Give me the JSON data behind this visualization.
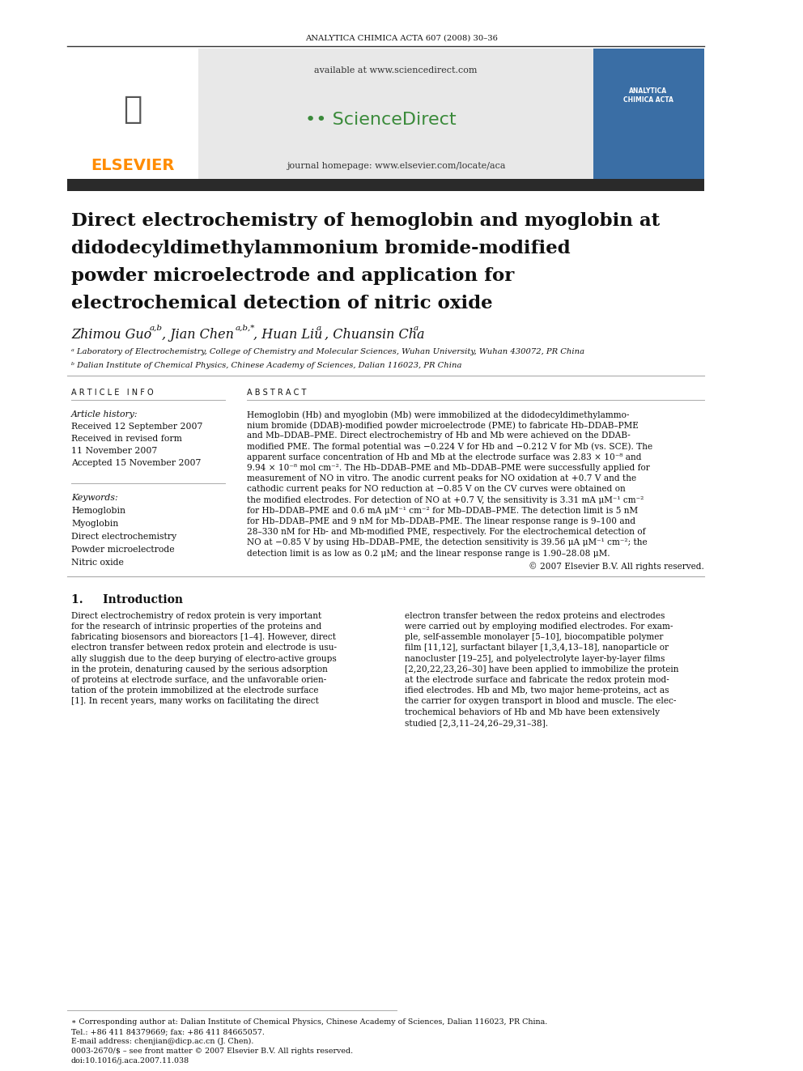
{
  "journal_header": "ANALYTICA CHIMICA ACTA 607 (2008) 30–36",
  "available_text": "available at www.sciencedirect.com",
  "journal_homepage": "journal homepage: www.elsevier.com/locate/aca",
  "title_line1": "Direct electrochemistry of hemoglobin and myoglobin at",
  "title_line2": "didodecyldimethylammonium bromide-modified",
  "title_line3": "powder microelectrode and application for",
  "title_line4": "electrochemical detection of nitric oxide",
  "author_name1": "Zhimou Guo",
  "author_sup1": "a,b",
  "author_name2": ", Jian Chen",
  "author_sup2": "a,b,*",
  "author_name3": ", Huan Liu",
  "author_sup3": "a",
  "author_name4": ", Chuansin Cha",
  "author_sup4": "a",
  "affil_a": "ᵃ Laboratory of Electrochemistry, College of Chemistry and Molecular Sciences, Wuhan University, Wuhan 430072, PR China",
  "affil_b": "ᵇ Dalian Institute of Chemical Physics, Chinese Academy of Sciences, Dalian 116023, PR China",
  "article_info_header": "A R T I C L E   I N F O",
  "article_history_label": "Article history:",
  "received1": "Received 12 September 2007",
  "received_revised": "Received in revised form",
  "received_revised2": "11 November 2007",
  "accepted": "Accepted 15 November 2007",
  "keywords_label": "Keywords:",
  "keywords": [
    "Hemoglobin",
    "Myoglobin",
    "Direct electrochemistry",
    "Powder microelectrode",
    "Nitric oxide"
  ],
  "abstract_header": "A B S T R A C T",
  "abstract_lines": [
    "Hemoglobin (Hb) and myoglobin (Mb) were immobilized at the didodecyldimethylammo-",
    "nium bromide (DDAB)-modified powder microelectrode (PME) to fabricate Hb–DDAB–PME",
    "and Mb–DDAB–PME. Direct electrochemistry of Hb and Mb were achieved on the DDAB-",
    "modified PME. The formal potential was −0.224 V for Hb and −0.212 V for Mb (vs. SCE). The",
    "apparent surface concentration of Hb and Mb at the electrode surface was 2.83 × 10⁻⁸ and",
    "9.94 × 10⁻⁸ mol cm⁻². The Hb–DDAB–PME and Mb–DDAB–PME were successfully applied for",
    "measurement of NO in vitro. The anodic current peaks for NO oxidation at +0.7 V and the",
    "cathodic current peaks for NO reduction at −0.85 V on the CV curves were obtained on",
    "the modified electrodes. For detection of NO at +0.7 V, the sensitivity is 3.31 mA μM⁻¹ cm⁻²",
    "for Hb–DDAB–PME and 0.6 mA μM⁻¹ cm⁻² for Mb–DDAB–PME. The detection limit is 5 nM",
    "for Hb–DDAB–PME and 9 nM for Mb–DDAB–PME. The linear response range is 9–100 and",
    "28–330 nM for Hb- and Mb-modified PME, respectively. For the electrochemical detection of",
    "NO at −0.85 V by using Hb–DDAB–PME, the detection sensitivity is 39.56 μA μM⁻¹ cm⁻²; the",
    "detection limit is as low as 0.2 μM; and the linear response range is 1.90–28.08 μM."
  ],
  "copyright": "© 2007 Elsevier B.V. All rights reserved.",
  "intro_header": "1.     Introduction",
  "intro_left_lines": [
    "Direct electrochemistry of redox protein is very important",
    "for the research of intrinsic properties of the proteins and",
    "fabricating biosensors and bioreactors [1–4]. However, direct",
    "electron transfer between redox protein and electrode is usu-",
    "ally sluggish due to the deep burying of electro-active groups",
    "in the protein, denaturing caused by the serious adsorption",
    "of proteins at electrode surface, and the unfavorable orien-",
    "tation of the protein immobilized at the electrode surface",
    "[1]. In recent years, many works on facilitating the direct"
  ],
  "intro_right_lines": [
    "electron transfer between the redox proteins and electrodes",
    "were carried out by employing modified electrodes. For exam-",
    "ple, self-assemble monolayer [5–10], biocompatible polymer",
    "film [11,12], surfactant bilayer [1,3,4,13–18], nanoparticle or",
    "nanocluster [19–25], and polyelectrolyte layer-by-layer films",
    "[2,20,22,23,26–30] have been applied to immobilize the protein",
    "at the electrode surface and fabricate the redox protein mod-",
    "ified electrodes. Hb and Mb, two major heme-proteins, act as",
    "the carrier for oxygen transport in blood and muscle. The elec-",
    "trochemical behaviors of Hb and Mb have been extensively",
    "studied [2,3,11–24,26–29,31–38]."
  ],
  "footnote_lines": [
    "∗ Corresponding author at: Dalian Institute of Chemical Physics, Chinese Academy of Sciences, Dalian 116023, PR China.",
    "Tel.: +86 411 84379669; fax: +86 411 84665057.",
    "E-mail address: chenjian@dicp.ac.cn (J. Chen).",
    "0003-2670/$ – see front matter © 2007 Elsevier B.V. All rights reserved.",
    "doi:10.1016/j.aca.2007.11.038"
  ],
  "elsevier_color": "#FF8C00",
  "black_bar_color": "#2a2a2a",
  "bg_color": "#ffffff",
  "gray_banner_color": "#e8e8e8",
  "cover_blue_color": "#3a6ea5",
  "line_color": "#aaaaaa",
  "dark_line_color": "#111111",
  "text_color": "#111111"
}
